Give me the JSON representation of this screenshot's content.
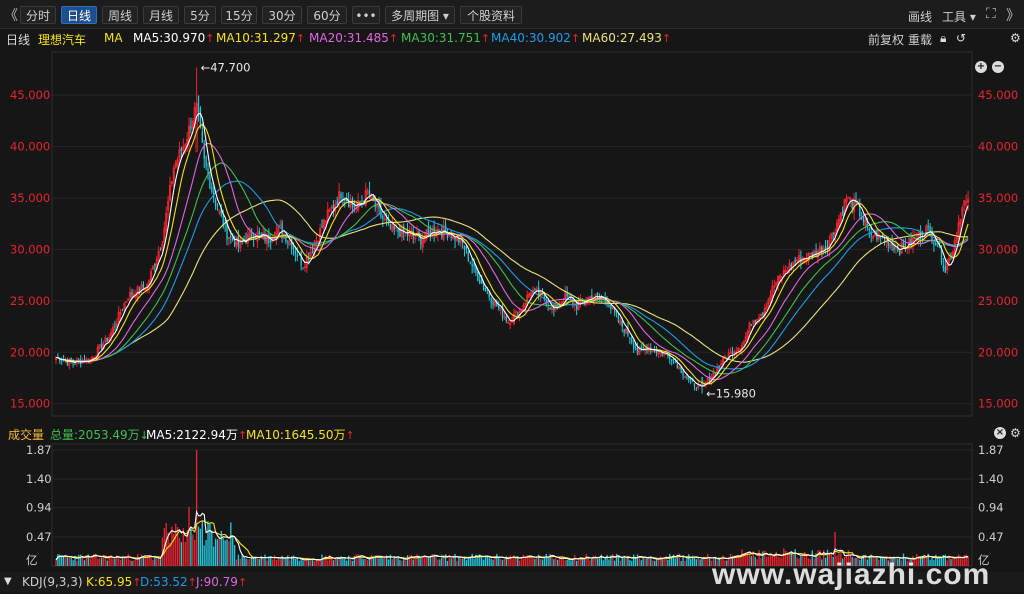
{
  "toolbar": {
    "tabs": [
      "分时",
      "日线",
      "周线",
      "月线",
      "5分",
      "15分",
      "30分",
      "60分",
      "•••",
      "多周期图 ▾",
      "个股资料"
    ],
    "right": [
      "画线",
      "工具 ▾"
    ],
    "nav_left": "《",
    "nav_right": "》"
  },
  "main_legend": {
    "period": "日线",
    "stock": "理想汽车",
    "indicator": "MA",
    "ma5": "MA5:30.970",
    "ma10": "MA10:31.297",
    "ma20": "MA20:31.485",
    "ma30": "MA30:31.751",
    "ma40": "MA40:30.902",
    "ma60": "MA60:27.493",
    "right_controls": [
      "前复权",
      "重载"
    ]
  },
  "volume_legend": {
    "title": "成交量",
    "total": "总量:2053.49万",
    "ma5": "MA5:2122.94万",
    "ma10": "MA10:1645.50万"
  },
  "kdj_legend": {
    "title": "KDJ(9,3,3)",
    "k": "K:65.95",
    "d": "D:53.52",
    "j": "J:90.79"
  },
  "watermark": "www.wajiazhi.com",
  "colors": {
    "up": "#e8242f",
    "down": "#26c6da",
    "ma5": "#ffffff",
    "ma10": "#f5e216",
    "ma20": "#e066e0",
    "ma30": "#3fbf4f",
    "ma40": "#1e9be8",
    "ma60": "#ebe27a",
    "vol_ma10": "#f5e216",
    "k": "#ffffff",
    "d": "#f5e216",
    "j": "#e066e0",
    "price_axis": "#e8242f",
    "grid": "#262626"
  },
  "chart_data": [
    {
      "type": "candlestick",
      "title": "理想汽车 日线",
      "ylim": [
        14,
        49
      ],
      "yticks": [
        "15.000",
        "20.000",
        "25.000",
        "30.000",
        "35.000",
        "40.000",
        "45.000"
      ],
      "annotations": [
        "47.700",
        "15.980"
      ],
      "close_path": [
        [
          0,
          19.5
        ],
        [
          8,
          19.0
        ],
        [
          18,
          19.3
        ],
        [
          28,
          21.5
        ],
        [
          38,
          25.5
        ],
        [
          48,
          26.5
        ],
        [
          56,
          31
        ],
        [
          62,
          38
        ],
        [
          68,
          40.5
        ],
        [
          74,
          44
        ],
        [
          78,
          38.5
        ],
        [
          84,
          34.5
        ],
        [
          90,
          31.5
        ],
        [
          96,
          30.5
        ],
        [
          104,
          31.5
        ],
        [
          112,
          31
        ],
        [
          118,
          32
        ],
        [
          124,
          30.5
        ],
        [
          130,
          28.5
        ],
        [
          136,
          30.5
        ],
        [
          142,
          33
        ],
        [
          150,
          35.5
        ],
        [
          158,
          34
        ],
        [
          164,
          35.5
        ],
        [
          170,
          33.5
        ],
        [
          176,
          32
        ],
        [
          184,
          31.5
        ],
        [
          192,
          31
        ],
        [
          200,
          32
        ],
        [
          208,
          31.5
        ],
        [
          214,
          30.5
        ],
        [
          220,
          28
        ],
        [
          226,
          26
        ],
        [
          232,
          24.5
        ],
        [
          238,
          23
        ],
        [
          244,
          24
        ],
        [
          250,
          26
        ],
        [
          256,
          25.5
        ],
        [
          262,
          24
        ],
        [
          268,
          25.5
        ],
        [
          274,
          24.5
        ],
        [
          282,
          25.5
        ],
        [
          290,
          25
        ],
        [
          296,
          23
        ],
        [
          302,
          21.5
        ],
        [
          306,
          20
        ],
        [
          312,
          20.5
        ],
        [
          318,
          20
        ],
        [
          324,
          19.5
        ],
        [
          328,
          18.5
        ],
        [
          334,
          17
        ],
        [
          340,
          16.5
        ],
        [
          346,
          18
        ],
        [
          352,
          19.5
        ],
        [
          356,
          20
        ],
        [
          362,
          21
        ],
        [
          366,
          23
        ],
        [
          372,
          24
        ],
        [
          378,
          26.5
        ],
        [
          384,
          28
        ],
        [
          390,
          29
        ],
        [
          398,
          29.5
        ],
        [
          406,
          30.5
        ],
        [
          412,
          33
        ],
        [
          416,
          35
        ],
        [
          422,
          34
        ],
        [
          428,
          31.5
        ],
        [
          436,
          31
        ],
        [
          444,
          30
        ],
        [
          452,
          31
        ],
        [
          458,
          32
        ],
        [
          464,
          30.5
        ],
        [
          468,
          28
        ],
        [
          472,
          30
        ],
        [
          476,
          33.5
        ],
        [
          478,
          34.5
        ],
        [
          480,
          34.3
        ]
      ],
      "max_high": 47.7,
      "min_low": 15.98,
      "moving_averages": {
        "MA5": 30.97,
        "MA10": 31.297,
        "MA20": 31.485,
        "MA30": 31.751,
        "MA40": 30.902,
        "MA60": 27.493
      }
    },
    {
      "type": "bar",
      "title": "成交量",
      "unit": "亿",
      "ylim": [
        0,
        1.87
      ],
      "yticks": [
        "1.87",
        "1.40",
        "0.94",
        "0.47",
        "亿"
      ],
      "total": 0.2053,
      "peak": 1.87
    }
  ]
}
